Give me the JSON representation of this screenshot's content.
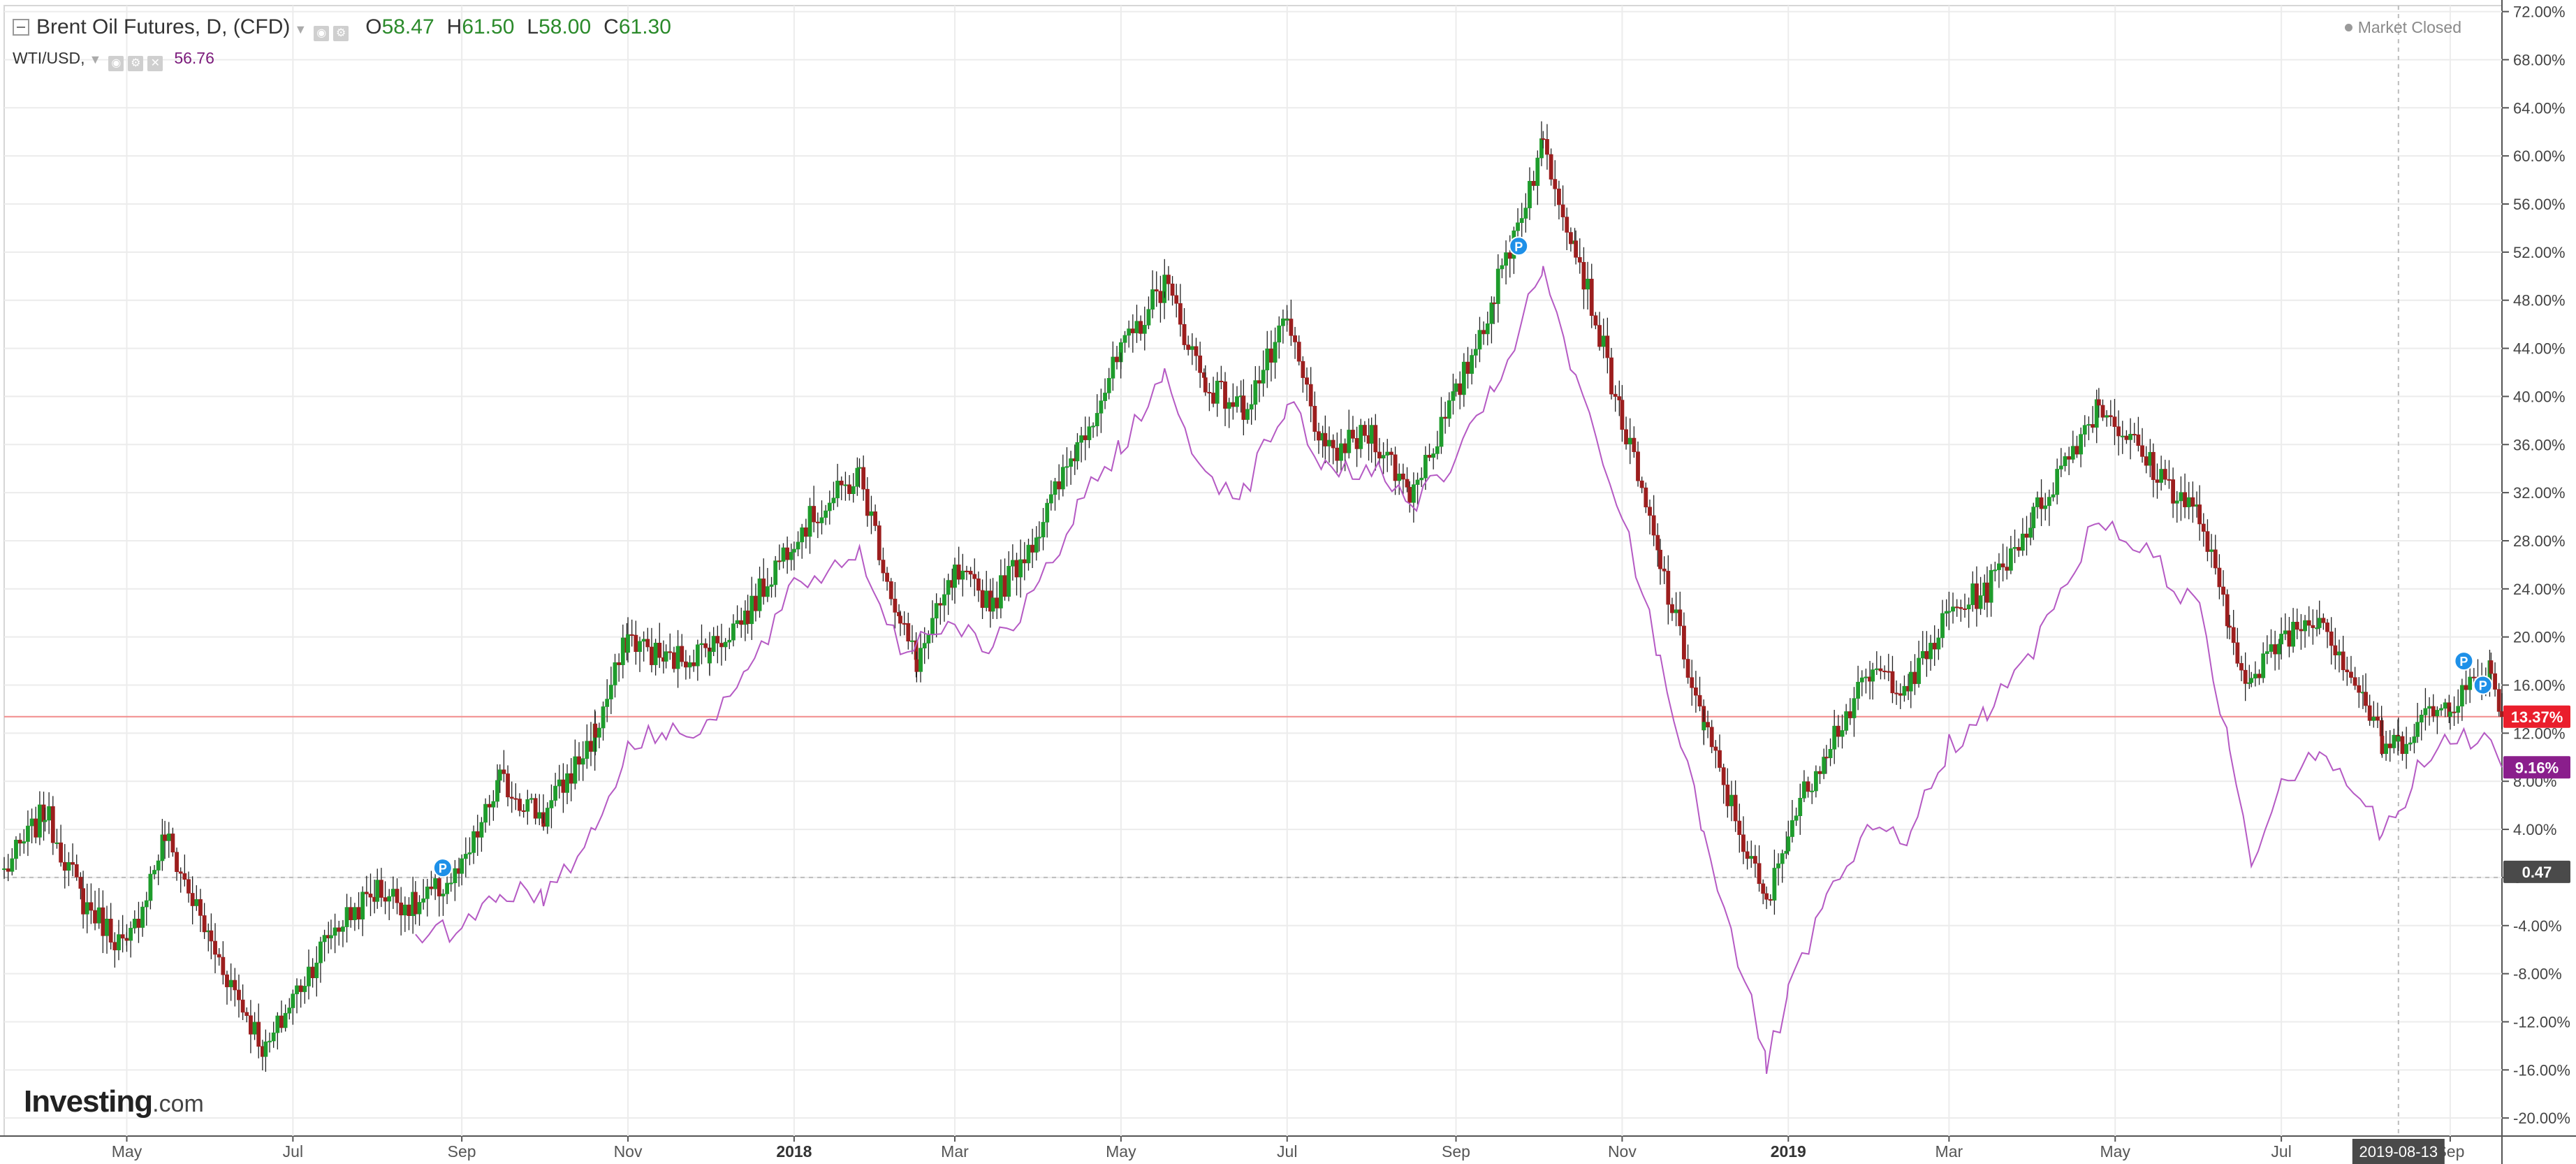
{
  "header": {
    "symbol_title": "Brent Oil Futures, D, (CFD)",
    "open_label": "O",
    "open_value": "58.47",
    "high_label": "H",
    "high_value": "61.50",
    "low_label": "L",
    "low_value": "58.00",
    "close_label": "C",
    "close_value": "61.30",
    "compare_symbol": "WTI/USD,",
    "compare_value": "56.76",
    "market_status": "Market Closed"
  },
  "logo": {
    "brand": "Investing",
    "suffix": ".com"
  },
  "colors": {
    "up": "#1e9c2c",
    "down": "#9c1e1e",
    "compare_line": "#b55ac4",
    "current_badge": "#ea1e2c",
    "compare_badge": "#8a1e8c",
    "marker": "#1e90e8",
    "grid": "#ececec"
  },
  "chart_data": {
    "type": "line",
    "title": "Brent Oil Futures, D, (CFD)",
    "y_axis": {
      "unit": "%",
      "ylim": [
        -21.5,
        72.5
      ],
      "ticks": [
        "72.00%",
        "68.00%",
        "64.00%",
        "60.00%",
        "56.00%",
        "52.00%",
        "48.00%",
        "44.00%",
        "40.00%",
        "36.00%",
        "32.00%",
        "28.00%",
        "24.00%",
        "20.00%",
        "16.00%",
        "12.00%",
        "8.00%",
        "4.00%",
        "0",
        "-4.00%",
        "-8.00%",
        "-12.00%",
        "-16.00%",
        "-20.00%"
      ],
      "tick_values": [
        72,
        68,
        64,
        60,
        56,
        52,
        48,
        44,
        40,
        36,
        32,
        28,
        24,
        20,
        16,
        12,
        8,
        4,
        0,
        -4,
        -8,
        -12,
        -16,
        -20
      ],
      "position": "right",
      "grid": true
    },
    "x_axis": {
      "labels": [
        "May",
        "Jul",
        "Sep",
        "Nov",
        "2018",
        "Mar",
        "May",
        "Jul",
        "Sep",
        "Nov",
        "2019",
        "Mar",
        "May",
        "Jul",
        "Sep"
      ],
      "label_dates": [
        "2017-05-01",
        "2017-07-01",
        "2017-09-01",
        "2017-11-01",
        "2018-01-01",
        "2018-03-01",
        "2018-05-01",
        "2018-07-01",
        "2018-09-01",
        "2018-11-01",
        "2019-01-01",
        "2019-03-01",
        "2019-05-01",
        "2019-07-01",
        "2019-09-01"
      ],
      "bold_labels": [
        "2018",
        "2019"
      ],
      "range": [
        "2017-03-17",
        "2019-09-20"
      ],
      "crosshair_label": "2019-08-13",
      "crosshair_date": "2019-08-13",
      "grid": true
    },
    "series": [
      {
        "name": "Brent Oil Futures, D, (CFD)",
        "kind": "candlestick (percent change)",
        "x": [
          "2017-03-17",
          "2017-04-01",
          "2017-04-15",
          "2017-05-01",
          "2017-05-15",
          "2017-06-01",
          "2017-06-21",
          "2017-07-01",
          "2017-07-15",
          "2017-08-01",
          "2017-08-15",
          "2017-09-01",
          "2017-09-15",
          "2017-10-01",
          "2017-10-20",
          "2017-11-01",
          "2017-11-15",
          "2017-12-01",
          "2017-12-15",
          "2018-01-01",
          "2018-01-25",
          "2018-02-09",
          "2018-02-15",
          "2018-03-01",
          "2018-03-15",
          "2018-04-01",
          "2018-04-15",
          "2018-05-01",
          "2018-05-17",
          "2018-06-01",
          "2018-06-15",
          "2018-07-01",
          "2018-07-15",
          "2018-08-01",
          "2018-08-15",
          "2018-09-01",
          "2018-09-15",
          "2018-10-03",
          "2018-10-15",
          "2018-11-01",
          "2018-11-15",
          "2018-12-01",
          "2018-12-24",
          "2019-01-01",
          "2019-01-15",
          "2019-02-01",
          "2019-02-15",
          "2019-03-01",
          "2019-03-15",
          "2019-04-01",
          "2019-04-25",
          "2019-05-15",
          "2019-06-01",
          "2019-06-12",
          "2019-06-20",
          "2019-07-01",
          "2019-07-15",
          "2019-08-01",
          "2019-08-07",
          "2019-08-13",
          "2019-08-20",
          "2019-09-01",
          "2019-09-16",
          "2019-09-20"
        ],
        "y": [
          0.5,
          5.5,
          -2.0,
          -6.0,
          3.5,
          -5.5,
          -14.5,
          -10.0,
          -4.5,
          -1.0,
          -2.5,
          0.5,
          8.0,
          5.0,
          12.0,
          20.0,
          18.0,
          19.0,
          22.0,
          28.5,
          33.5,
          21.0,
          18.0,
          25.0,
          23.0,
          29.0,
          36.0,
          43.5,
          49.5,
          41.0,
          39.0,
          46.0,
          35.0,
          37.0,
          32.0,
          40.0,
          48.5,
          61.0,
          52.5,
          38.0,
          26.0,
          12.5,
          -2.5,
          4.0,
          11.0,
          17.0,
          16.0,
          22.0,
          24.0,
          30.0,
          39.5,
          34.0,
          30.0,
          20.5,
          16.0,
          20.0,
          22.0,
          14.5,
          11.0,
          11.0,
          13.0,
          14.5,
          17.5,
          13.37
        ]
      },
      {
        "name": "WTI/USD",
        "kind": "line (percent change)",
        "x": [
          "2017-08-15",
          "2017-09-01",
          "2017-09-15",
          "2017-10-01",
          "2017-10-20",
          "2017-11-01",
          "2017-11-15",
          "2017-12-01",
          "2017-12-15",
          "2018-01-01",
          "2018-01-25",
          "2018-02-09",
          "2018-03-01",
          "2018-03-15",
          "2018-04-01",
          "2018-04-15",
          "2018-05-01",
          "2018-05-17",
          "2018-06-01",
          "2018-06-15",
          "2018-07-01",
          "2018-07-15",
          "2018-08-01",
          "2018-08-15",
          "2018-09-01",
          "2018-09-15",
          "2018-10-03",
          "2018-10-15",
          "2018-11-01",
          "2018-11-15",
          "2018-12-01",
          "2018-12-24",
          "2019-01-01",
          "2019-01-15",
          "2019-02-01",
          "2019-02-15",
          "2019-03-01",
          "2019-03-15",
          "2019-04-01",
          "2019-04-25",
          "2019-05-15",
          "2019-06-01",
          "2019-06-12",
          "2019-06-20",
          "2019-07-01",
          "2019-07-15",
          "2019-08-01",
          "2019-08-07",
          "2019-08-13",
          "2019-08-20",
          "2019-09-01",
          "2019-09-16",
          "2019-09-20"
        ],
        "y": [
          -5.5,
          -4.0,
          -1.0,
          -1.5,
          4.0,
          11.0,
          12.0,
          13.0,
          17.0,
          24.0,
          27.0,
          19.0,
          21.5,
          19.0,
          24.0,
          30.5,
          36.0,
          41.5,
          33.5,
          32.0,
          39.5,
          34.0,
          34.0,
          31.0,
          34.5,
          40.5,
          50.5,
          41.0,
          30.0,
          18.0,
          4.0,
          -15.5,
          -10.0,
          -2.0,
          4.0,
          3.5,
          11.0,
          13.5,
          19.0,
          30.0,
          26.5,
          22.0,
          11.0,
          1.5,
          8.0,
          11.0,
          6.0,
          3.5,
          5.0,
          9.0,
          11.5,
          11.5,
          9.16
        ]
      }
    ],
    "price_line": {
      "value": 13.37,
      "label": "13.37%"
    },
    "badges": [
      {
        "series": "Brent Oil Futures, D, (CFD)",
        "value": 13.37,
        "label": "13.37%"
      },
      {
        "series": "WTI/USD",
        "value": 9.16,
        "label": "9.16%"
      },
      {
        "series": "crosshair",
        "value": 0.47,
        "label": "0.47"
      }
    ],
    "markers": [
      {
        "label": "P",
        "date": "2017-08-25",
        "value": 0.8
      },
      {
        "label": "P",
        "date": "2018-09-24",
        "value": 52.5
      },
      {
        "label": "P",
        "date": "2019-09-06",
        "value": 18.0
      },
      {
        "label": "P",
        "date": "2019-09-13",
        "value": 16.0
      }
    ]
  }
}
